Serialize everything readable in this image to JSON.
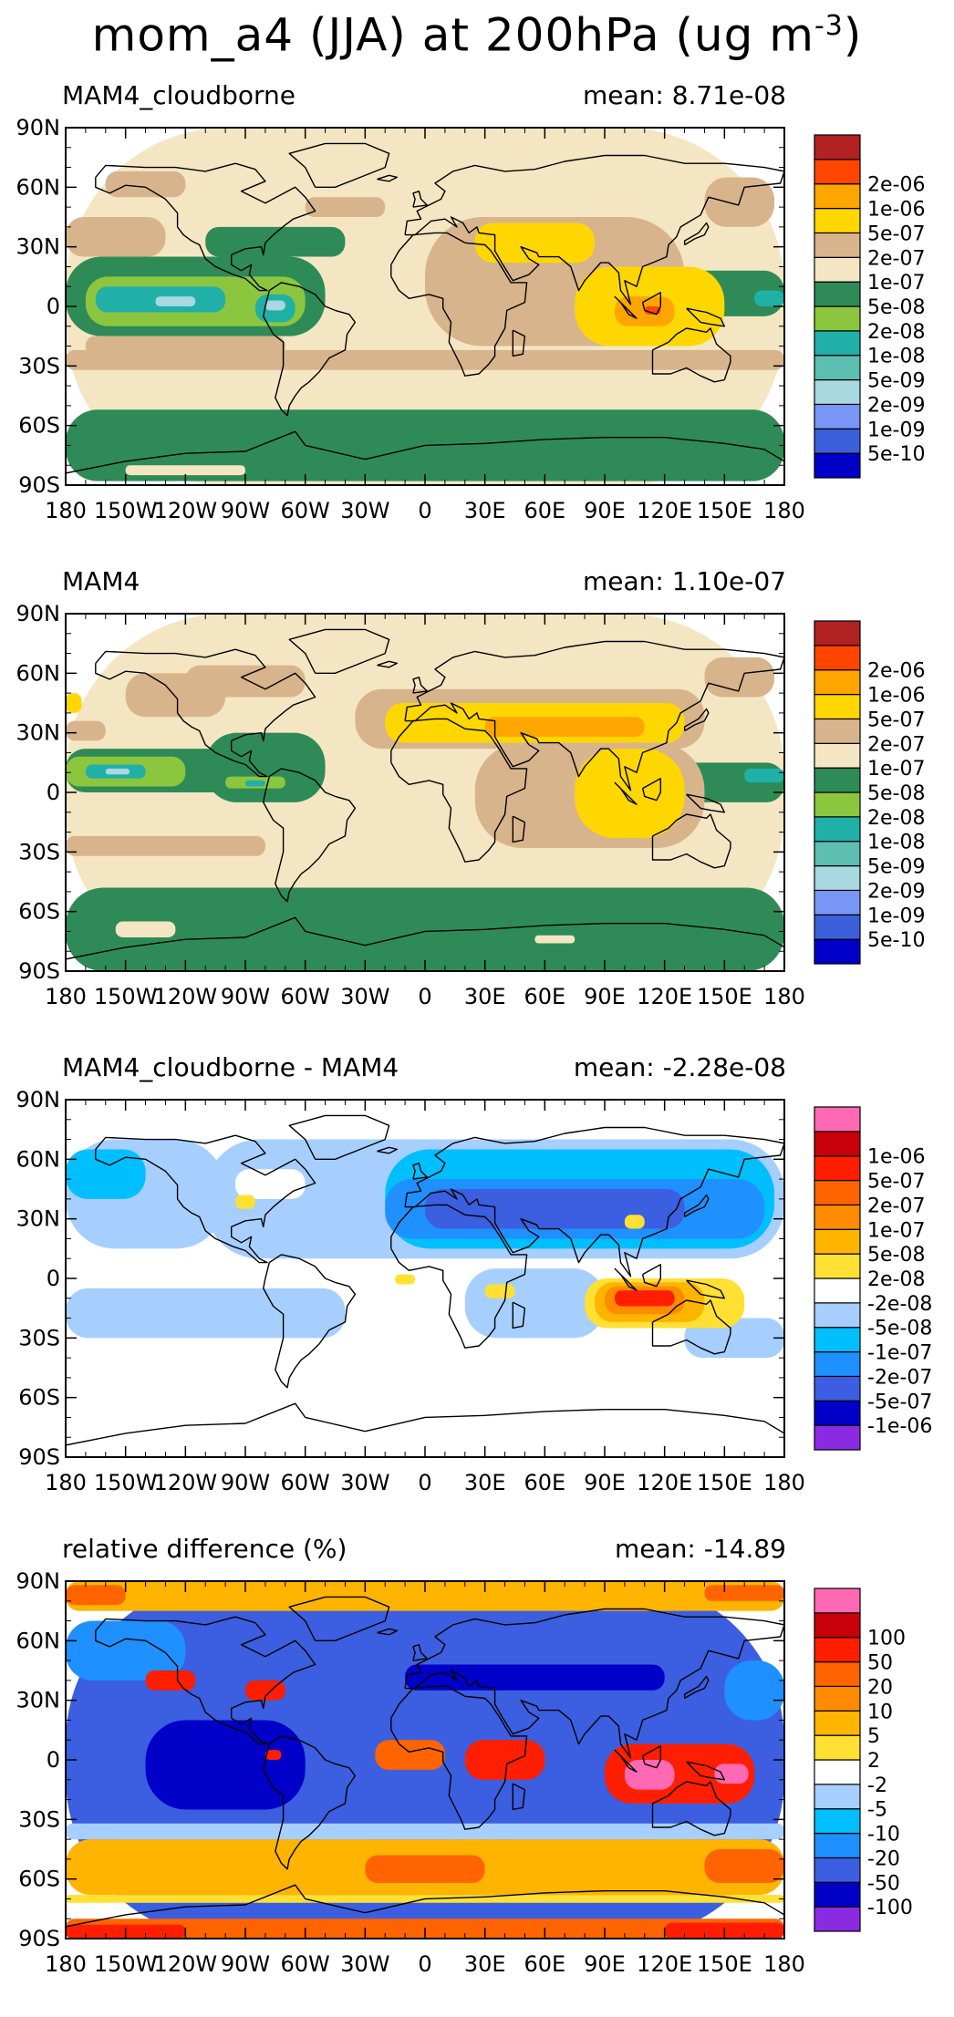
{
  "title": "mom_a4 (JJA) at 200hPa (ug m",
  "title_sup": "-3",
  "title_close": ")",
  "lat_labels": [
    "90N",
    "60N",
    "30N",
    "0",
    "30S",
    "60S",
    "90S"
  ],
  "lon_labels": [
    "180",
    "150W",
    "120W",
    "90W",
    "60W",
    "30W",
    "0",
    "30E",
    "60E",
    "90E",
    "120E",
    "150E",
    "180"
  ],
  "panels": [
    {
      "id": "cloudborne",
      "left_title": "MAM4_cloudborne",
      "right_title": "mean: 8.71e-08",
      "colorbar": {
        "colors": [
          "#0000C8",
          "#3C5FDC",
          "#7896F5",
          "#A8D8E0",
          "#5DBEB2",
          "#20B0A8",
          "#8CC63E",
          "#2E8B57",
          "#F5E6C3",
          "#D8B48C",
          "#FFD700",
          "#FFA500",
          "#FF4500",
          "#B22222"
        ],
        "labels": [
          "5e-10",
          "1e-09",
          "2e-09",
          "5e-09",
          "1e-08",
          "2e-08",
          "5e-08",
          "1e-07",
          "2e-07",
          "5e-07",
          "1e-06",
          "2e-06"
        ]
      },
      "regions": [
        {
          "color": "#F5E6C3",
          "lon": [
            -180,
            180
          ],
          "lat": [
            -90,
            90
          ]
        },
        {
          "color": "#2E8B57",
          "lon": [
            -180,
            180
          ],
          "lat": [
            -88,
            -52
          ]
        },
        {
          "color": "#F5E6C3",
          "lon": [
            -150,
            -90
          ],
          "lat": [
            -85,
            -80
          ]
        },
        {
          "color": "#2E8B57",
          "lon": [
            -180,
            -50
          ],
          "lat": [
            -15,
            25
          ]
        },
        {
          "color": "#8CC63E",
          "lon": [
            -170,
            -60
          ],
          "lat": [
            -10,
            15
          ]
        },
        {
          "color": "#20B0A8",
          "lon": [
            -165,
            -100
          ],
          "lat": [
            -3,
            10
          ]
        },
        {
          "color": "#A8D8E0",
          "lon": [
            -135,
            -115
          ],
          "lat": [
            0,
            5
          ]
        },
        {
          "color": "#20B0A8",
          "lon": [
            -85,
            -65
          ],
          "lat": [
            -8,
            6
          ]
        },
        {
          "color": "#A8D8E0",
          "lon": [
            -80,
            -70
          ],
          "lat": [
            -2,
            3
          ]
        },
        {
          "color": "#2E8B57",
          "lon": [
            -110,
            -40
          ],
          "lat": [
            25,
            40
          ]
        },
        {
          "color": "#2E8B57",
          "lon": [
            130,
            180
          ],
          "lat": [
            -5,
            18
          ]
        },
        {
          "color": "#20B0A8",
          "lon": [
            165,
            180
          ],
          "lat": [
            0,
            8
          ]
        },
        {
          "color": "#D8B48C",
          "lon": [
            -180,
            -130
          ],
          "lat": [
            25,
            45
          ]
        },
        {
          "color": "#D8B48C",
          "lon": [
            -170,
            -70
          ],
          "lat": [
            -25,
            -15
          ]
        },
        {
          "color": "#D8B48C",
          "lon": [
            -180,
            180
          ],
          "lat": [
            -32,
            -22
          ]
        },
        {
          "color": "#D8B48C",
          "lon": [
            0,
            130
          ],
          "lat": [
            -20,
            45
          ]
        },
        {
          "color": "#D8B48C",
          "lon": [
            -160,
            -120
          ],
          "lat": [
            55,
            68
          ]
        },
        {
          "color": "#D8B48C",
          "lon": [
            -60,
            -20
          ],
          "lat": [
            45,
            55
          ]
        },
        {
          "color": "#D8B48C",
          "lon": [
            140,
            175
          ],
          "lat": [
            40,
            65
          ]
        },
        {
          "color": "#FFD700",
          "lon": [
            25,
            85
          ],
          "lat": [
            22,
            42
          ]
        },
        {
          "color": "#FFD700",
          "lon": [
            75,
            150
          ],
          "lat": [
            -20,
            20
          ]
        },
        {
          "color": "#FFA500",
          "lon": [
            95,
            125
          ],
          "lat": [
            -10,
            5
          ]
        },
        {
          "color": "#FF4500",
          "lon": [
            110,
            118
          ],
          "lat": [
            -4,
            0
          ]
        }
      ]
    },
    {
      "id": "mam4",
      "left_title": "MAM4",
      "right_title": "mean: 1.10e-07",
      "colorbar": {
        "colors": [
          "#0000C8",
          "#3C5FDC",
          "#7896F5",
          "#A8D8E0",
          "#5DBEB2",
          "#20B0A8",
          "#8CC63E",
          "#2E8B57",
          "#F5E6C3",
          "#D8B48C",
          "#FFD700",
          "#FFA500",
          "#FF4500",
          "#B22222"
        ],
        "labels": [
          "5e-10",
          "1e-09",
          "2e-09",
          "5e-09",
          "1e-08",
          "2e-08",
          "5e-08",
          "1e-07",
          "2e-07",
          "5e-07",
          "1e-06",
          "2e-06"
        ]
      },
      "regions": [
        {
          "color": "#F5E6C3",
          "lon": [
            -180,
            180
          ],
          "lat": [
            -90,
            90
          ]
        },
        {
          "color": "#2E8B57",
          "lon": [
            -180,
            180
          ],
          "lat": [
            -90,
            -48
          ]
        },
        {
          "color": "#F5E6C3",
          "lon": [
            -155,
            -125
          ],
          "lat": [
            -73,
            -65
          ]
        },
        {
          "color": "#F5E6C3",
          "lon": [
            55,
            75
          ],
          "lat": [
            -76,
            -72
          ]
        },
        {
          "color": "#2E8B57",
          "lon": [
            -180,
            -70
          ],
          "lat": [
            0,
            22
          ]
        },
        {
          "color": "#2E8B57",
          "lon": [
            -110,
            -50
          ],
          "lat": [
            -5,
            30
          ]
        },
        {
          "color": "#8CC63E",
          "lon": [
            -180,
            -120
          ],
          "lat": [
            3,
            18
          ]
        },
        {
          "color": "#20B0A8",
          "lon": [
            -170,
            -140
          ],
          "lat": [
            7,
            14
          ]
        },
        {
          "color": "#A8D8E0",
          "lon": [
            -160,
            -148
          ],
          "lat": [
            9,
            12
          ]
        },
        {
          "color": "#8CC63E",
          "lon": [
            -100,
            -70
          ],
          "lat": [
            2,
            8
          ]
        },
        {
          "color": "#20B0A8",
          "lon": [
            -90,
            -80
          ],
          "lat": [
            3,
            6
          ]
        },
        {
          "color": "#2E8B57",
          "lon": [
            125,
            180
          ],
          "lat": [
            -5,
            15
          ]
        },
        {
          "color": "#20B0A8",
          "lon": [
            160,
            180
          ],
          "lat": [
            5,
            12
          ]
        },
        {
          "color": "#D8B48C",
          "lon": [
            -180,
            -80
          ],
          "lat": [
            -32,
            -22
          ]
        },
        {
          "color": "#D8B48C",
          "lon": [
            -150,
            -100
          ],
          "lat": [
            38,
            60
          ]
        },
        {
          "color": "#D8B48C",
          "lon": [
            -120,
            -60
          ],
          "lat": [
            48,
            64
          ]
        },
        {
          "color": "#D8B48C",
          "lon": [
            -35,
            140
          ],
          "lat": [
            22,
            52
          ]
        },
        {
          "color": "#D8B48C",
          "lon": [
            25,
            140
          ],
          "lat": [
            -28,
            25
          ]
        },
        {
          "color": "#D8B48C",
          "lon": [
            140,
            175
          ],
          "lat": [
            48,
            68
          ]
        },
        {
          "color": "#D8B48C",
          "lon": [
            -180,
            -160
          ],
          "lat": [
            26,
            36
          ]
        },
        {
          "color": "#FFD700",
          "lon": [
            -20,
            130
          ],
          "lat": [
            25,
            45
          ]
        },
        {
          "color": "#FFD700",
          "lon": [
            75,
            130
          ],
          "lat": [
            -23,
            22
          ]
        },
        {
          "color": "#FFD700",
          "lon": [
            -180,
            -172
          ],
          "lat": [
            40,
            50
          ]
        },
        {
          "color": "#FFA500",
          "lon": [
            30,
            110
          ],
          "lat": [
            28,
            38
          ]
        }
      ]
    },
    {
      "id": "diff",
      "left_title": "MAM4_cloudborne - MAM4",
      "right_title": "mean: -2.28e-08",
      "colorbar": {
        "colors": [
          "#8A2BE2",
          "#0000C8",
          "#3B5FE0",
          "#1E90FF",
          "#00BFFF",
          "#A6CFFF",
          "#FFFFFF",
          "#FFE033",
          "#FFB400",
          "#FF8C00",
          "#FF6400",
          "#FF1E00",
          "#C8000A",
          "#FF69B4"
        ],
        "labels": [
          "-1e-06",
          "-5e-07",
          "-2e-07",
          "-1e-07",
          "-5e-08",
          "-2e-08",
          "2e-08",
          "5e-08",
          "1e-07",
          "2e-07",
          "5e-07",
          "1e-06"
        ]
      },
      "regions": [
        {
          "color": "#FFFFFF",
          "lon": [
            -180,
            180
          ],
          "lat": [
            -90,
            90
          ]
        },
        {
          "color": "#A6CFFF",
          "lon": [
            -180,
            -100
          ],
          "lat": [
            15,
            70
          ]
        },
        {
          "color": "#A6CFFF",
          "lon": [
            -180,
            -40
          ],
          "lat": [
            -30,
            -5
          ]
        },
        {
          "color": "#A6CFFF",
          "lon": [
            -110,
            180
          ],
          "lat": [
            10,
            70
          ]
        },
        {
          "color": "#FFFFFF",
          "lon": [
            -95,
            -60
          ],
          "lat": [
            40,
            55
          ]
        },
        {
          "color": "#00BFFF",
          "lon": [
            -180,
            -140
          ],
          "lat": [
            40,
            65
          ]
        },
        {
          "color": "#00BFFF",
          "lon": [
            -20,
            175
          ],
          "lat": [
            15,
            65
          ]
        },
        {
          "color": "#1E90FF",
          "lon": [
            -20,
            170
          ],
          "lat": [
            20,
            50
          ]
        },
        {
          "color": "#3B5FE0",
          "lon": [
            0,
            130
          ],
          "lat": [
            25,
            45
          ]
        },
        {
          "color": "#A6CFFF",
          "lon": [
            20,
            90
          ],
          "lat": [
            -30,
            5
          ]
        },
        {
          "color": "#A6CFFF",
          "lon": [
            130,
            180
          ],
          "lat": [
            -40,
            -20
          ]
        },
        {
          "color": "#FFE033",
          "lon": [
            -95,
            -85
          ],
          "lat": [
            35,
            42
          ]
        },
        {
          "color": "#FFE033",
          "lon": [
            80,
            160
          ],
          "lat": [
            -25,
            0
          ]
        },
        {
          "color": "#FFB400",
          "lon": [
            85,
            140
          ],
          "lat": [
            -22,
            -2
          ]
        },
        {
          "color": "#FF8C00",
          "lon": [
            90,
            130
          ],
          "lat": [
            -18,
            -4
          ]
        },
        {
          "color": "#FF1E00",
          "lon": [
            95,
            125
          ],
          "lat": [
            -14,
            -6
          ]
        },
        {
          "color": "#FFE033",
          "lon": [
            30,
            45
          ],
          "lat": [
            -10,
            -3
          ]
        },
        {
          "color": "#FFE033",
          "lon": [
            100,
            110
          ],
          "lat": [
            25,
            32
          ]
        },
        {
          "color": "#FFE033",
          "lon": [
            -15,
            -5
          ],
          "lat": [
            -3,
            2
          ]
        }
      ]
    },
    {
      "id": "rel",
      "left_title": "relative difference (%)",
      "right_title": "mean: -14.89",
      "colorbar": {
        "colors": [
          "#8A2BE2",
          "#0000C8",
          "#3B5FE0",
          "#1E90FF",
          "#00BFFF",
          "#A6CFFF",
          "#FFFFFF",
          "#FFE033",
          "#FFB400",
          "#FF8C00",
          "#FF6400",
          "#FF1E00",
          "#C8000A",
          "#FF69B4"
        ],
        "labels": [
          "-100",
          "-50",
          "-20",
          "-10",
          "-5",
          "-2",
          "2",
          "5",
          "10",
          "20",
          "50",
          "100"
        ]
      },
      "regions": [
        {
          "color": "#3B5FE0",
          "lon": [
            -180,
            180
          ],
          "lat": [
            -90,
            90
          ]
        },
        {
          "color": "#FFB400",
          "lon": [
            -180,
            180
          ],
          "lat": [
            75,
            90
          ]
        },
        {
          "color": "#FF6400",
          "lon": [
            -180,
            -150
          ],
          "lat": [
            78,
            88
          ]
        },
        {
          "color": "#FF6400",
          "lon": [
            140,
            180
          ],
          "lat": [
            80,
            88
          ]
        },
        {
          "color": "#FFB400",
          "lon": [
            -180,
            180
          ],
          "lat": [
            -68,
            -40
          ]
        },
        {
          "color": "#FFE033",
          "lon": [
            -180,
            180
          ],
          "lat": [
            -72,
            -68
          ]
        },
        {
          "color": "#FF6400",
          "lon": [
            -180,
            180
          ],
          "lat": [
            -90,
            -80
          ]
        },
        {
          "color": "#FF1E00",
          "lon": [
            -180,
            -120
          ],
          "lat": [
            -90,
            -83
          ]
        },
        {
          "color": "#FF1E00",
          "lon": [
            120,
            180
          ],
          "lat": [
            -90,
            -82
          ]
        },
        {
          "color": "#A6CFFF",
          "lon": [
            -180,
            180
          ],
          "lat": [
            -40,
            -32
          ]
        },
        {
          "color": "#FF6400",
          "lon": [
            -30,
            30
          ],
          "lat": [
            -62,
            -48
          ]
        },
        {
          "color": "#FF6400",
          "lon": [
            140,
            180
          ],
          "lat": [
            -62,
            -45
          ]
        },
        {
          "color": "#0000C8",
          "lon": [
            -140,
            -60
          ],
          "lat": [
            -25,
            20
          ]
        },
        {
          "color": "#0000C8",
          "lon": [
            -10,
            120
          ],
          "lat": [
            35,
            48
          ]
        },
        {
          "color": "#1E90FF",
          "lon": [
            -180,
            -120
          ],
          "lat": [
            40,
            70
          ]
        },
        {
          "color": "#1E90FF",
          "lon": [
            150,
            180
          ],
          "lat": [
            20,
            50
          ]
        },
        {
          "color": "#FF1E00",
          "lon": [
            -140,
            -115
          ],
          "lat": [
            35,
            45
          ]
        },
        {
          "color": "#FF1E00",
          "lon": [
            -90,
            -70
          ],
          "lat": [
            30,
            40
          ]
        },
        {
          "color": "#FF1E00",
          "lon": [
            -80,
            -72
          ],
          "lat": [
            0,
            5
          ]
        },
        {
          "color": "#FF6400",
          "lon": [
            -25,
            10
          ],
          "lat": [
            -5,
            10
          ]
        },
        {
          "color": "#FF1E00",
          "lon": [
            20,
            60
          ],
          "lat": [
            -10,
            10
          ]
        },
        {
          "color": "#FF1E00",
          "lon": [
            90,
            165
          ],
          "lat": [
            -22,
            8
          ]
        },
        {
          "color": "#FF69B4",
          "lon": [
            100,
            125
          ],
          "lat": [
            -15,
            0
          ]
        },
        {
          "color": "#FF69B4",
          "lon": [
            145,
            162
          ],
          "lat": [
            -12,
            -2
          ]
        },
        {
          "color": "#FFB400",
          "lon": [
            -60,
            -40
          ],
          "lat": [
            78,
            85
          ]
        }
      ]
    }
  ]
}
